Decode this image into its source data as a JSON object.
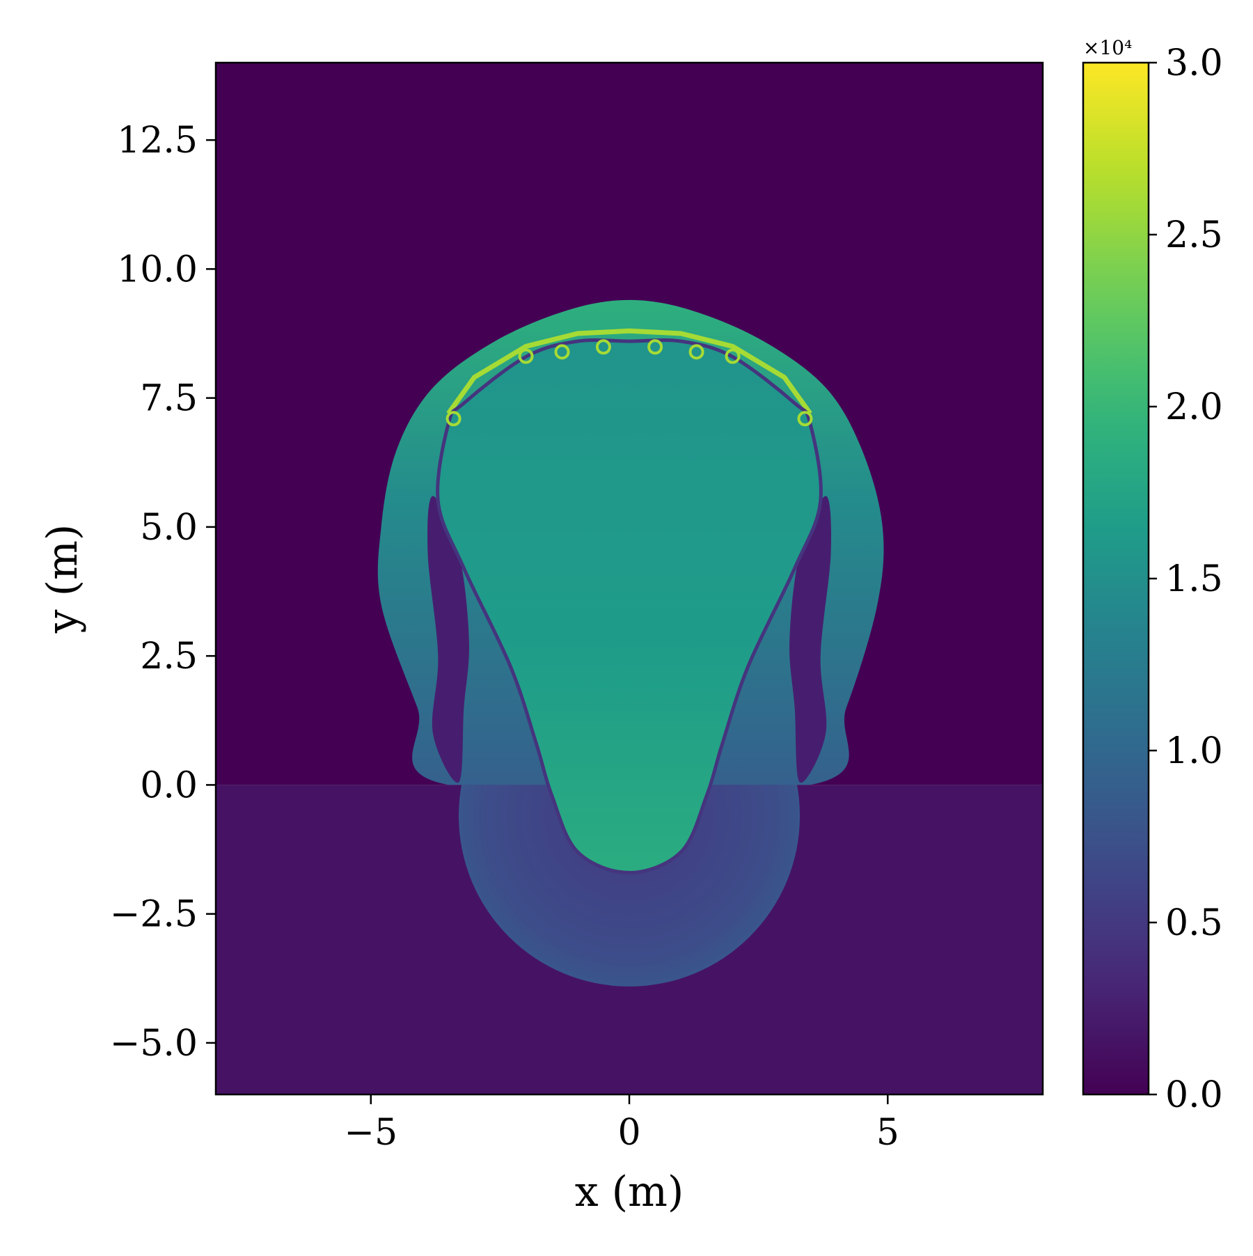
{
  "chart_data": {
    "type": "heatmap",
    "title": "",
    "xlabel": "x (m)",
    "ylabel": "y (m)",
    "xlim": [
      -8,
      8
    ],
    "ylim": [
      -6,
      14
    ],
    "xticks": [
      -5,
      0,
      5
    ],
    "xtick_labels": [
      "−5",
      "0",
      "5"
    ],
    "yticks": [
      -5.0,
      -2.5,
      0.0,
      2.5,
      5.0,
      7.5,
      10.0,
      12.5
    ],
    "ytick_labels": [
      "−5.0",
      "−2.5",
      "0.0",
      "2.5",
      "5.0",
      "7.5",
      "10.0",
      "12.5"
    ],
    "colorbar": {
      "colormap": "viridis",
      "range": [
        0.0,
        3.0
      ],
      "ticks": [
        0.0,
        0.5,
        1.0,
        1.5,
        2.0,
        2.5,
        3.0
      ],
      "tick_labels": [
        "0.0",
        "0.5",
        "1.0",
        "1.5",
        "2.0",
        "2.5",
        "3.0"
      ],
      "multiplier": "×10⁴"
    },
    "field": {
      "background_upper_y_ge_0": 0.0,
      "background_lower_y_lt_0": 0.15,
      "interface_y": 0.0,
      "shocked_shell_outline": [
        [
          -3.5,
          0.0
        ],
        [
          -4.1,
          1.5
        ],
        [
          -4.8,
          3.5
        ],
        [
          -4.8,
          5.0
        ],
        [
          -4.5,
          6.5
        ],
        [
          -3.8,
          7.7
        ],
        [
          -2.6,
          8.6
        ],
        [
          -1.2,
          9.2
        ],
        [
          0.0,
          9.4
        ],
        [
          1.2,
          9.2
        ],
        [
          2.6,
          8.6
        ],
        [
          3.8,
          7.7
        ],
        [
          4.5,
          6.5
        ],
        [
          4.9,
          5.0
        ],
        [
          4.8,
          3.5
        ],
        [
          4.2,
          1.5
        ],
        [
          3.5,
          0.0
        ]
      ],
      "shocked_shell_value": 1.2,
      "core_outline": [
        [
          0.0,
          -1.7
        ],
        [
          -1.0,
          -1.3
        ],
        [
          -1.5,
          -0.2
        ],
        [
          -1.8,
          0.8
        ],
        [
          -2.3,
          2.3
        ],
        [
          -3.2,
          4.2
        ],
        [
          -3.7,
          5.5
        ],
        [
          -3.5,
          7.0
        ],
        [
          -3.2,
          7.4
        ],
        [
          -2.0,
          8.3
        ],
        [
          -1.0,
          8.6
        ],
        [
          0.0,
          8.6
        ],
        [
          1.0,
          8.6
        ],
        [
          2.0,
          8.3
        ],
        [
          3.2,
          7.4
        ],
        [
          3.5,
          7.0
        ],
        [
          3.7,
          5.5
        ],
        [
          3.2,
          4.2
        ],
        [
          2.3,
          2.3
        ],
        [
          1.8,
          0.8
        ],
        [
          1.5,
          -0.2
        ],
        [
          1.0,
          -1.3
        ]
      ],
      "core_value": 1.65,
      "core_lower_value": 1.85,
      "lower_shock_center": [
        0.0,
        -0.6
      ],
      "lower_shock_radius": 3.3,
      "lower_shock_value": 0.7,
      "rim_value": 2.6
    }
  }
}
